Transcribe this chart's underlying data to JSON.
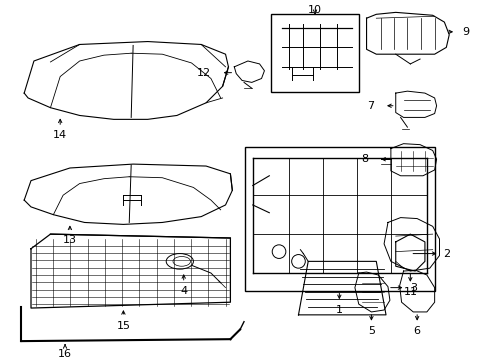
{
  "background_color": "#ffffff",
  "line_color": "#000000",
  "text_color": "#000000",
  "figsize": [
    4.89,
    3.6
  ],
  "dpi": 100
}
